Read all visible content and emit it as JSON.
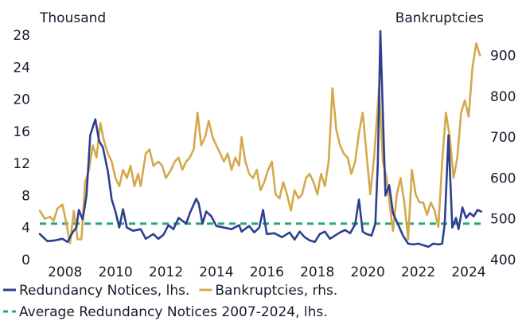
{
  "chart_data": {
    "type": "line",
    "left_axis": {
      "unit_label": "Thousand",
      "ylim": [
        0,
        28
      ],
      "ticks": [
        "0",
        "4",
        "8",
        "12",
        "16",
        "20",
        "24",
        "28"
      ]
    },
    "right_axis": {
      "unit_label": "Bankruptcies",
      "ylim": [
        400,
        950
      ],
      "ticks": [
        "400",
        "500",
        "600",
        "700",
        "800",
        "900"
      ]
    },
    "x_axis": {
      "xlim": [
        2007,
        2024.6
      ],
      "ticks": [
        "2008",
        "2010",
        "2012",
        "2014",
        "2016",
        "2018",
        "2020",
        "2022",
        "2024"
      ]
    },
    "grid": false,
    "legend_position": "bottom",
    "series": [
      {
        "name": "Redundancy Notices, lhs.",
        "axis": "left",
        "color": "#2e3f8f",
        "points": [
          [
            2007.0,
            3.2
          ],
          [
            2007.3,
            2.3
          ],
          [
            2007.6,
            2.4
          ],
          [
            2007.9,
            2.6
          ],
          [
            2008.1,
            2.2
          ],
          [
            2008.3,
            3.4
          ],
          [
            2008.45,
            4.0
          ],
          [
            2008.55,
            6.2
          ],
          [
            2008.7,
            5.0
          ],
          [
            2008.85,
            8.0
          ],
          [
            2009.0,
            15.5
          ],
          [
            2009.2,
            17.5
          ],
          [
            2009.35,
            14.8
          ],
          [
            2009.5,
            14.0
          ],
          [
            2009.7,
            11.0
          ],
          [
            2009.85,
            7.5
          ],
          [
            2010.0,
            6.0
          ],
          [
            2010.15,
            4.0
          ],
          [
            2010.3,
            6.3
          ],
          [
            2010.45,
            4.0
          ],
          [
            2010.7,
            3.6
          ],
          [
            2011.0,
            3.8
          ],
          [
            2011.2,
            2.6
          ],
          [
            2011.5,
            3.2
          ],
          [
            2011.7,
            2.6
          ],
          [
            2011.9,
            3.1
          ],
          [
            2012.1,
            4.3
          ],
          [
            2012.3,
            3.8
          ],
          [
            2012.5,
            5.2
          ],
          [
            2012.8,
            4.5
          ],
          [
            2012.95,
            5.8
          ],
          [
            2013.2,
            7.6
          ],
          [
            2013.3,
            7.0
          ],
          [
            2013.45,
            4.5
          ],
          [
            2013.6,
            6.0
          ],
          [
            2013.8,
            5.4
          ],
          [
            2014.0,
            4.2
          ],
          [
            2014.3,
            4.0
          ],
          [
            2014.6,
            3.8
          ],
          [
            2014.9,
            4.3
          ],
          [
            2015.0,
            3.5
          ],
          [
            2015.3,
            4.2
          ],
          [
            2015.5,
            3.4
          ],
          [
            2015.7,
            4.0
          ],
          [
            2015.85,
            6.2
          ],
          [
            2016.0,
            3.2
          ],
          [
            2016.3,
            3.3
          ],
          [
            2016.6,
            2.8
          ],
          [
            2016.9,
            3.4
          ],
          [
            2017.1,
            2.5
          ],
          [
            2017.3,
            3.5
          ],
          [
            2017.5,
            2.8
          ],
          [
            2017.7,
            2.4
          ],
          [
            2017.9,
            2.2
          ],
          [
            2018.1,
            3.2
          ],
          [
            2018.3,
            3.5
          ],
          [
            2018.5,
            2.6
          ],
          [
            2018.7,
            3.0
          ],
          [
            2018.9,
            3.4
          ],
          [
            2019.1,
            3.7
          ],
          [
            2019.3,
            3.3
          ],
          [
            2019.5,
            4.4
          ],
          [
            2019.65,
            7.5
          ],
          [
            2019.8,
            3.5
          ],
          [
            2019.95,
            3.2
          ],
          [
            2020.15,
            3.0
          ],
          [
            2020.3,
            4.5
          ],
          [
            2020.4,
            12.0
          ],
          [
            2020.5,
            28.5
          ],
          [
            2020.6,
            18.0
          ],
          [
            2020.7,
            8.0
          ],
          [
            2020.85,
            9.3
          ],
          [
            2021.0,
            5.8
          ],
          [
            2021.2,
            4.4
          ],
          [
            2021.4,
            3.0
          ],
          [
            2021.6,
            2.0
          ],
          [
            2021.8,
            1.9
          ],
          [
            2022.0,
            2.0
          ],
          [
            2022.2,
            1.8
          ],
          [
            2022.4,
            1.6
          ],
          [
            2022.6,
            2.0
          ],
          [
            2022.8,
            1.9
          ],
          [
            2022.95,
            2.0
          ],
          [
            2023.05,
            4.5
          ],
          [
            2023.2,
            15.5
          ],
          [
            2023.35,
            4.0
          ],
          [
            2023.5,
            5.2
          ],
          [
            2023.6,
            3.8
          ],
          [
            2023.75,
            6.5
          ],
          [
            2023.9,
            5.2
          ],
          [
            2024.05,
            5.8
          ],
          [
            2024.2,
            5.4
          ],
          [
            2024.35,
            6.2
          ],
          [
            2024.5,
            6.0
          ]
        ]
      },
      {
        "name": "Bankruptcies, rhs.",
        "axis": "right",
        "color": "#d4a94d",
        "points": [
          [
            2007.0,
            520
          ],
          [
            2007.2,
            500
          ],
          [
            2007.4,
            505
          ],
          [
            2007.55,
            495
          ],
          [
            2007.7,
            525
          ],
          [
            2007.9,
            535
          ],
          [
            2008.05,
            490
          ],
          [
            2008.2,
            440
          ],
          [
            2008.35,
            520
          ],
          [
            2008.5,
            450
          ],
          [
            2008.65,
            450
          ],
          [
            2008.8,
            590
          ],
          [
            2008.95,
            620
          ],
          [
            2009.1,
            680
          ],
          [
            2009.25,
            650
          ],
          [
            2009.4,
            735
          ],
          [
            2009.55,
            690
          ],
          [
            2009.7,
            660
          ],
          [
            2009.85,
            640
          ],
          [
            2010.0,
            600
          ],
          [
            2010.15,
            580
          ],
          [
            2010.3,
            620
          ],
          [
            2010.45,
            600
          ],
          [
            2010.6,
            630
          ],
          [
            2010.75,
            580
          ],
          [
            2010.9,
            610
          ],
          [
            2011.0,
            580
          ],
          [
            2011.2,
            660
          ],
          [
            2011.35,
            670
          ],
          [
            2011.5,
            630
          ],
          [
            2011.7,
            640
          ],
          [
            2011.85,
            630
          ],
          [
            2012.0,
            600
          ],
          [
            2012.2,
            620
          ],
          [
            2012.35,
            640
          ],
          [
            2012.5,
            650
          ],
          [
            2012.65,
            620
          ],
          [
            2012.8,
            640
          ],
          [
            2012.95,
            650
          ],
          [
            2013.1,
            670
          ],
          [
            2013.25,
            760
          ],
          [
            2013.4,
            680
          ],
          [
            2013.55,
            700
          ],
          [
            2013.7,
            740
          ],
          [
            2013.85,
            700
          ],
          [
            2014.0,
            680
          ],
          [
            2014.15,
            660
          ],
          [
            2014.3,
            640
          ],
          [
            2014.45,
            660
          ],
          [
            2014.6,
            620
          ],
          [
            2014.75,
            650
          ],
          [
            2014.9,
            630
          ],
          [
            2015.0,
            700
          ],
          [
            2015.15,
            640
          ],
          [
            2015.3,
            610
          ],
          [
            2015.45,
            600
          ],
          [
            2015.6,
            620
          ],
          [
            2015.75,
            570
          ],
          [
            2015.9,
            590
          ],
          [
            2016.05,
            620
          ],
          [
            2016.2,
            640
          ],
          [
            2016.35,
            560
          ],
          [
            2016.5,
            550
          ],
          [
            2016.65,
            590
          ],
          [
            2016.8,
            560
          ],
          [
            2016.95,
            520
          ],
          [
            2017.1,
            570
          ],
          [
            2017.25,
            550
          ],
          [
            2017.4,
            560
          ],
          [
            2017.55,
            600
          ],
          [
            2017.7,
            610
          ],
          [
            2017.85,
            590
          ],
          [
            2018.0,
            560
          ],
          [
            2018.15,
            610
          ],
          [
            2018.3,
            580
          ],
          [
            2018.45,
            640
          ],
          [
            2018.6,
            820
          ],
          [
            2018.75,
            720
          ],
          [
            2018.9,
            680
          ],
          [
            2019.05,
            660
          ],
          [
            2019.2,
            650
          ],
          [
            2019.35,
            610
          ],
          [
            2019.5,
            640
          ],
          [
            2019.65,
            710
          ],
          [
            2019.8,
            760
          ],
          [
            2019.95,
            660
          ],
          [
            2020.1,
            560
          ],
          [
            2020.25,
            650
          ],
          [
            2020.45,
            820
          ],
          [
            2020.6,
            640
          ],
          [
            2020.75,
            600
          ],
          [
            2020.9,
            520
          ],
          [
            2021.0,
            470
          ],
          [
            2021.15,
            560
          ],
          [
            2021.3,
            600
          ],
          [
            2021.45,
            540
          ],
          [
            2021.6,
            450
          ],
          [
            2021.75,
            620
          ],
          [
            2021.9,
            560
          ],
          [
            2022.05,
            540
          ],
          [
            2022.2,
            540
          ],
          [
            2022.35,
            510
          ],
          [
            2022.5,
            540
          ],
          [
            2022.65,
            520
          ],
          [
            2022.8,
            480
          ],
          [
            2022.95,
            640
          ],
          [
            2023.1,
            760
          ],
          [
            2023.25,
            700
          ],
          [
            2023.4,
            600
          ],
          [
            2023.55,
            650
          ],
          [
            2023.7,
            760
          ],
          [
            2023.85,
            790
          ],
          [
            2024.0,
            750
          ],
          [
            2024.15,
            870
          ],
          [
            2024.3,
            930
          ],
          [
            2024.45,
            900
          ]
        ]
      },
      {
        "name": "Average Redundancy Notices 2007-2024, lhs.",
        "axis": "left",
        "color": "#2aa876",
        "style": "dashed",
        "points": [
          [
            2007.0,
            4.5
          ],
          [
            2024.5,
            4.5
          ]
        ]
      }
    ]
  }
}
